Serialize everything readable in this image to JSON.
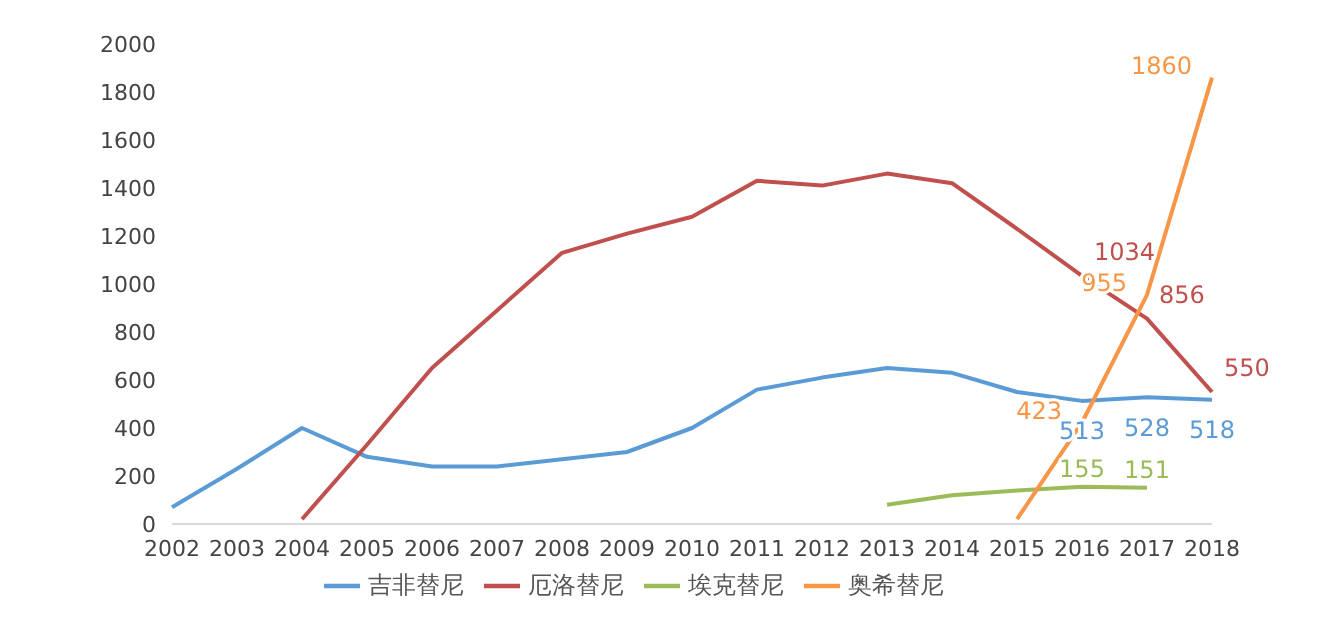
{
  "chart_data": {
    "type": "line",
    "categories": [
      "2002",
      "2003",
      "2004",
      "2005",
      "2006",
      "2007",
      "2008",
      "2009",
      "2010",
      "2011",
      "2012",
      "2013",
      "2014",
      "2015",
      "2016",
      "2017",
      "2018"
    ],
    "series": [
      {
        "name": "吉非替尼",
        "color": "#5b9bd5",
        "values": [
          70,
          230,
          400,
          280,
          240,
          240,
          270,
          300,
          400,
          560,
          610,
          650,
          630,
          550,
          513,
          528,
          518
        ],
        "value_labels": [
          null,
          null,
          null,
          null,
          null,
          null,
          null,
          null,
          null,
          null,
          null,
          null,
          null,
          null,
          "513",
          "528",
          "518"
        ]
      },
      {
        "name": "厄洛替尼",
        "color": "#c0504d",
        "values": [
          null,
          null,
          20,
          330,
          650,
          890,
          1130,
          1210,
          1280,
          1430,
          1410,
          1460,
          1420,
          1230,
          1034,
          856,
          550
        ],
        "value_labels": [
          null,
          null,
          null,
          null,
          null,
          null,
          null,
          null,
          null,
          null,
          null,
          null,
          null,
          null,
          "1034",
          "856",
          "550"
        ]
      },
      {
        "name": "埃克替尼",
        "color": "#9bbb59",
        "values": [
          null,
          null,
          null,
          null,
          null,
          null,
          null,
          null,
          null,
          null,
          null,
          80,
          120,
          140,
          155,
          151,
          null
        ],
        "value_labels": [
          null,
          null,
          null,
          null,
          null,
          null,
          null,
          null,
          null,
          null,
          null,
          null,
          null,
          null,
          "155",
          "151",
          null
        ]
      },
      {
        "name": "奥希替尼",
        "color": "#f79646",
        "values": [
          null,
          null,
          null,
          null,
          null,
          null,
          null,
          null,
          null,
          null,
          null,
          null,
          null,
          20,
          423,
          955,
          1860
        ],
        "value_labels": [
          null,
          null,
          null,
          null,
          null,
          null,
          null,
          null,
          null,
          null,
          null,
          null,
          null,
          null,
          "423",
          "955",
          "1860"
        ]
      }
    ],
    "ylim": [
      0,
      2000
    ],
    "yticks": [
      0,
      200,
      400,
      600,
      800,
      1000,
      1200,
      1400,
      1600,
      1800,
      2000
    ],
    "grid": false,
    "legend": "bottom",
    "marker": "none",
    "line_style": "solid"
  }
}
